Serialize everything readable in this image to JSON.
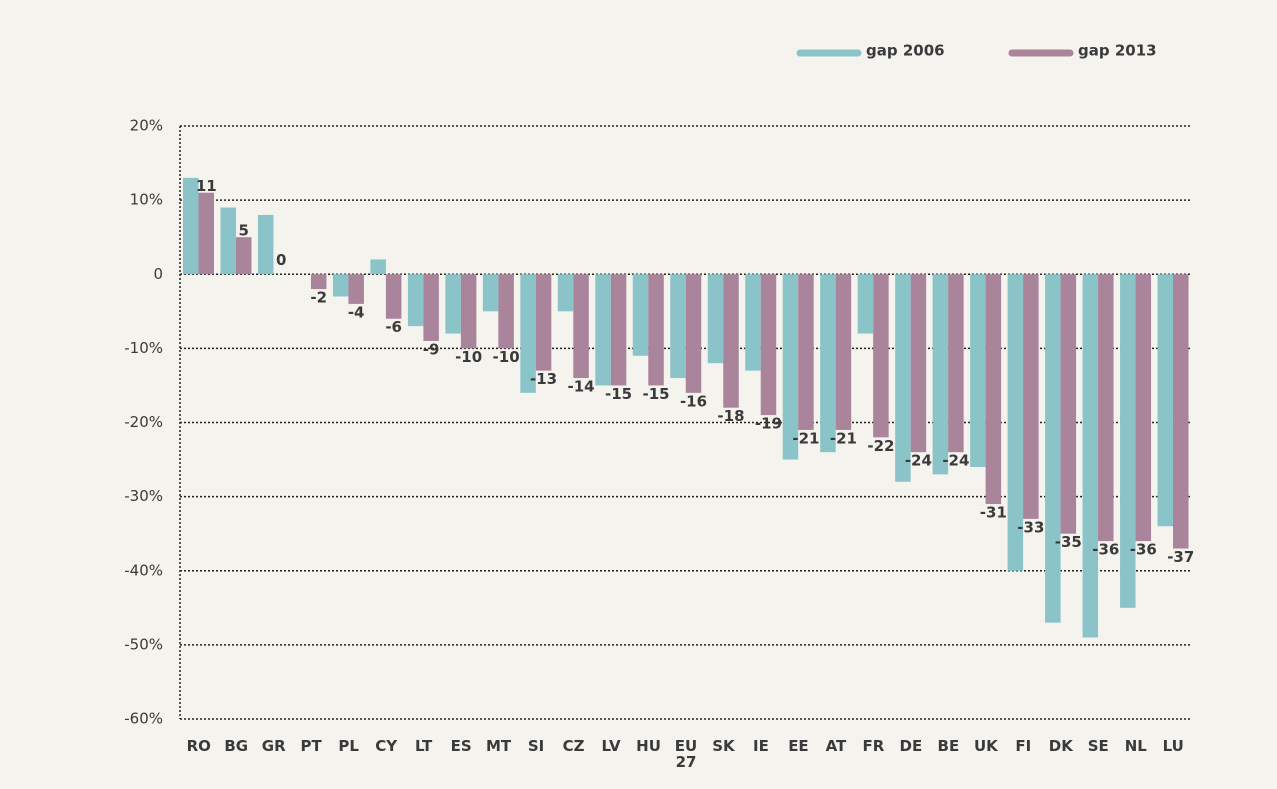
{
  "chart_data": {
    "type": "bar",
    "categories": [
      "RO",
      "BG",
      "GR",
      "PT",
      "PL",
      "CY",
      "LT",
      "ES",
      "MT",
      "SI",
      "CZ",
      "LV",
      "HU",
      "EU 27",
      "SK",
      "IE",
      "EE",
      "AT",
      "FR",
      "DE",
      "BE",
      "UK",
      "FI",
      "DK",
      "SE",
      "NL",
      "LU"
    ],
    "series": [
      {
        "name": "gap 2006",
        "color": "#8ac4c9",
        "values": [
          13,
          9,
          8,
          0,
          -3,
          2,
          -7,
          -8,
          -5,
          -16,
          -5,
          -15,
          -11,
          -14,
          -12,
          -13,
          -25,
          -24,
          -8,
          -28,
          -27,
          -26,
          -40,
          -47,
          -49,
          -45,
          -34
        ]
      },
      {
        "name": "gap 2013",
        "color": "#a9849a",
        "values": [
          11,
          5,
          0,
          -2,
          -4,
          -6,
          -9,
          -10,
          -10,
          -13,
          -14,
          -15,
          -15,
          -16,
          -18,
          -19,
          -21,
          -21,
          -22,
          -24,
          -24,
          -31,
          -33,
          -35,
          -36,
          -36,
          -37
        ]
      }
    ],
    "ylim": [
      -60,
      20
    ],
    "yticks": [
      {
        "value": -60,
        "label": "-60%"
      },
      {
        "value": -50,
        "label": "-50%"
      },
      {
        "value": -40,
        "label": "-40%"
      },
      {
        "value": -30,
        "label": "-30%"
      },
      {
        "value": -20,
        "label": "-20%"
      },
      {
        "value": -10,
        "label": "-10%"
      },
      0,
      {
        "value": 10,
        "label": "10%"
      },
      {
        "value": 20,
        "label": "20%"
      }
    ],
    "grid": true,
    "legend": "upper right",
    "labeled_series": 1
  }
}
